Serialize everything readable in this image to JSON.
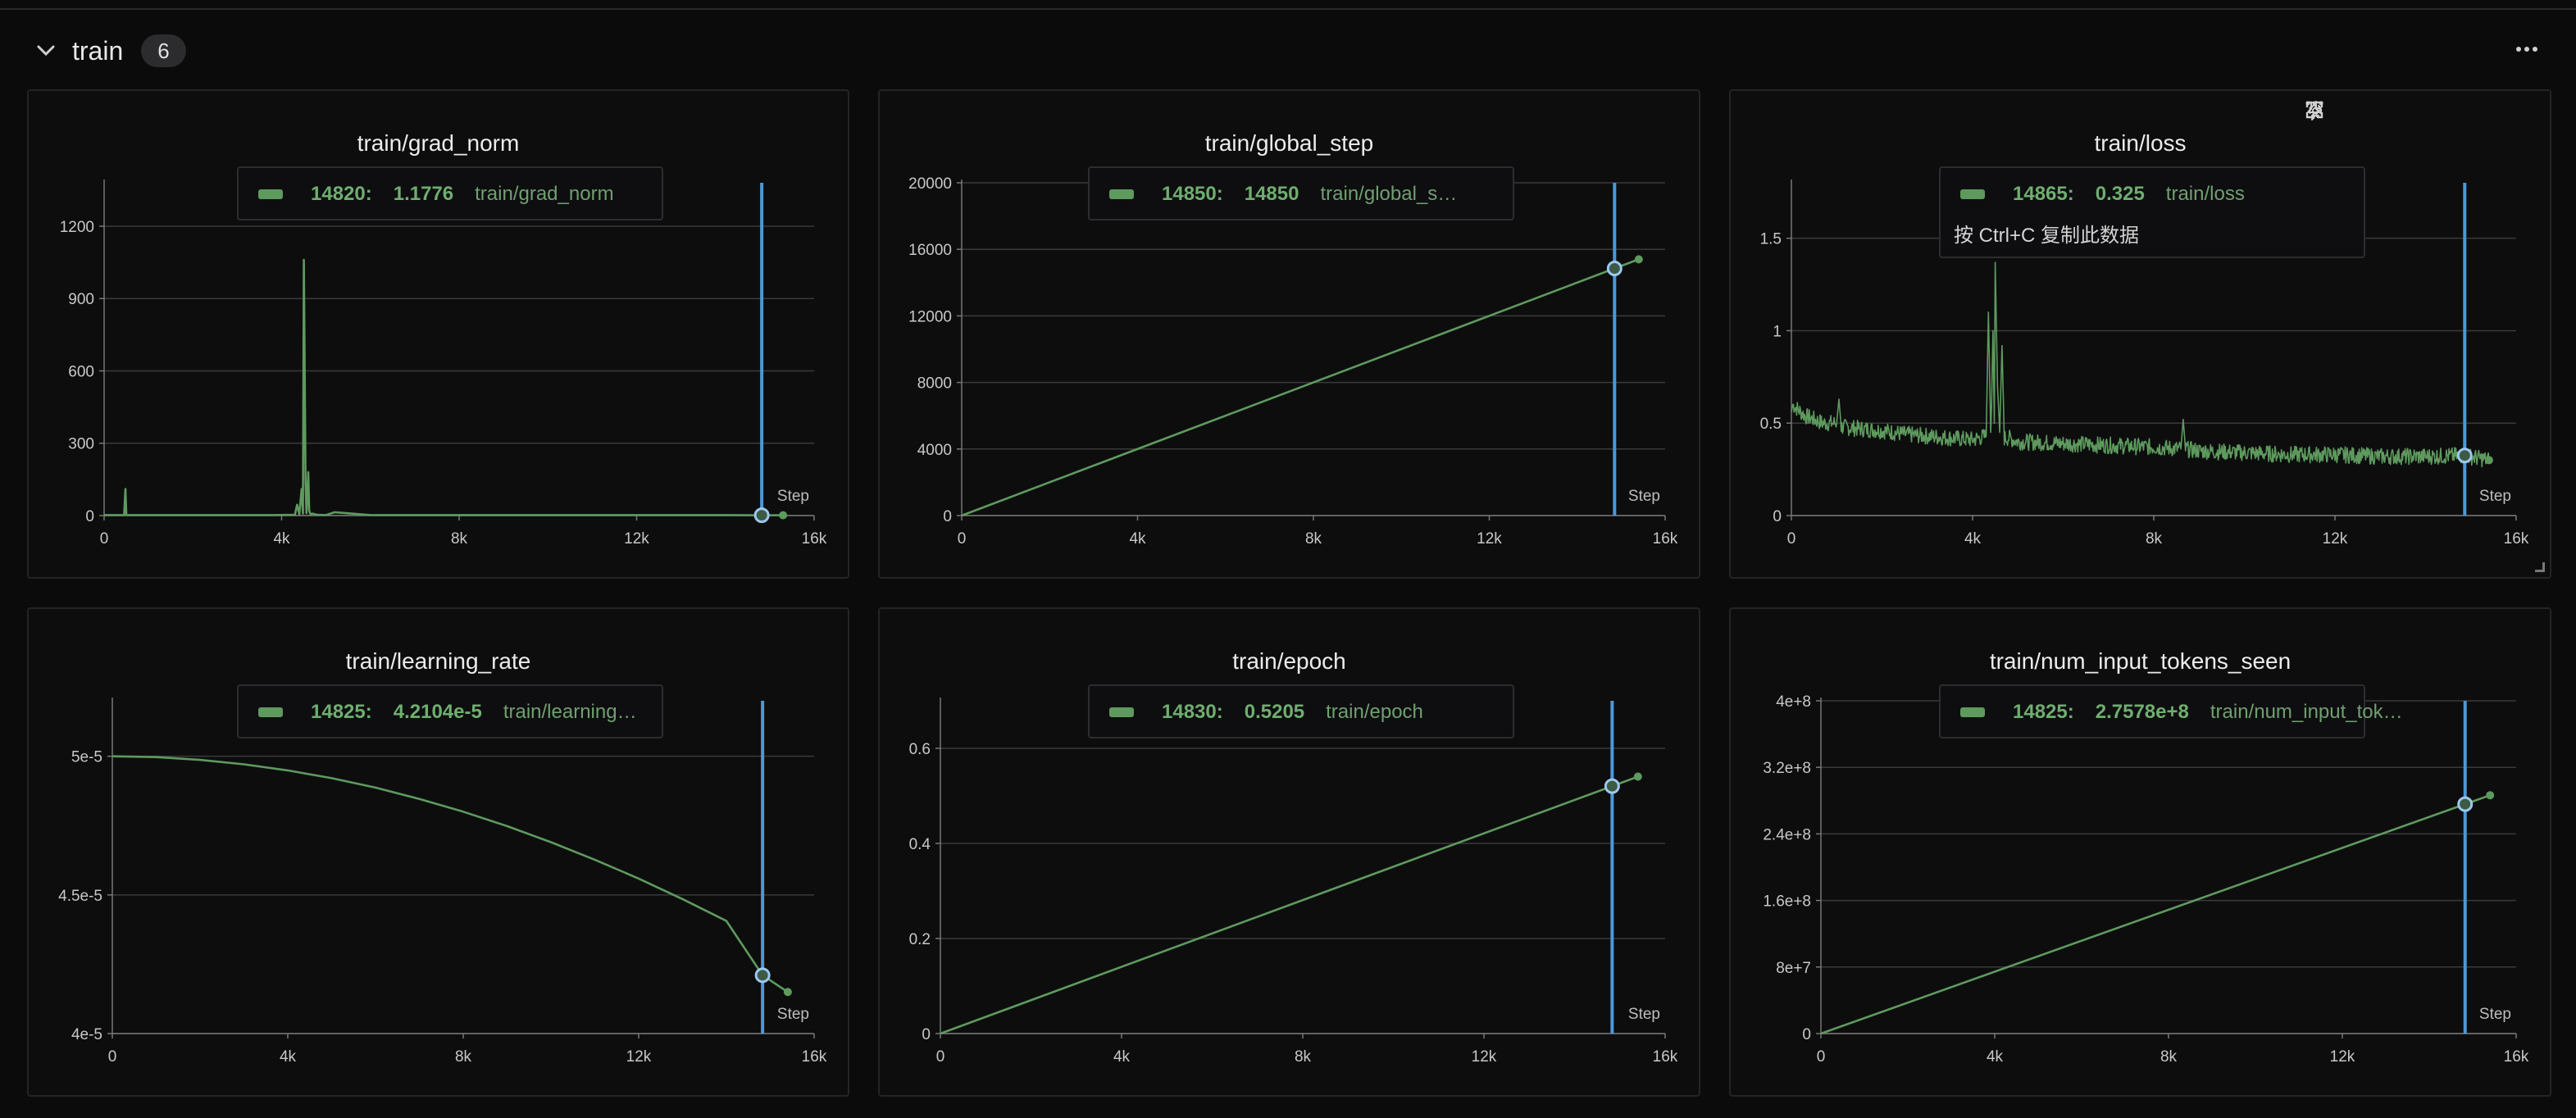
{
  "section": {
    "title": "train",
    "count": "6"
  },
  "x_axis_label": "Step",
  "colors": {
    "series": "#5e9a5e",
    "cursor": "#4c98d8",
    "grid": "#3a3a3c",
    "axis": "#777777"
  },
  "panels": [
    {
      "title": "train/grad_norm",
      "tooltip": {
        "step": "14820:",
        "value": "1.1776",
        "name": "train/grad_norm"
      }
    },
    {
      "title": "train/global_step",
      "tooltip": {
        "step": "14850:",
        "value": "14850",
        "name": "train/global_step"
      }
    },
    {
      "title": "train/loss",
      "tooltip": {
        "step": "14865:",
        "value": "0.325",
        "name": "train/loss",
        "hint": "按 Ctrl+C 复制此数据"
      }
    },
    {
      "title": "train/learning_rate",
      "tooltip": {
        "step": "14825:",
        "value": "4.2104e-5",
        "name": "train/learning_rate"
      }
    },
    {
      "title": "train/epoch",
      "tooltip": {
        "step": "14830:",
        "value": "0.5205",
        "name": "train/epoch"
      }
    },
    {
      "title": "train/num_input_tokens_seen",
      "tooltip": {
        "step": "14825:",
        "value": "2.7578e+8",
        "name": "train/num_input_tokens_seen"
      }
    }
  ],
  "chart_data": [
    {
      "type": "line",
      "title": "train/grad_norm",
      "xlabel": "Step",
      "xlim": [
        0,
        16000
      ],
      "ylim": [
        0,
        1380
      ],
      "xticks": [
        0,
        4000,
        8000,
        12000,
        16000
      ],
      "xtick_labels": [
        "0",
        "4k",
        "8k",
        "12k",
        "16k"
      ],
      "yticks": [
        0,
        300,
        600,
        900,
        1200
      ],
      "ytick_labels": [
        "0",
        "300",
        "600",
        "900",
        "1200"
      ],
      "x": [
        0,
        450,
        480,
        500,
        530,
        600,
        2000,
        3800,
        4300,
        4350,
        4400,
        4450,
        4480,
        4500,
        4540,
        4560,
        4600,
        4620,
        4650,
        4700,
        4800,
        5000,
        5200,
        6000,
        8000,
        10000,
        12000,
        14000,
        14820,
        15300
      ],
      "y": [
        2,
        2,
        110,
        3,
        2,
        2,
        2,
        2,
        3,
        45,
        5,
        110,
        8,
        1060,
        140,
        10,
        180,
        20,
        5,
        8,
        3,
        2,
        14,
        2,
        2,
        2,
        2,
        2,
        1.1776,
        1.2
      ],
      "cursor": {
        "x": 14820,
        "y": 1.1776
      }
    },
    {
      "type": "line",
      "title": "train/global_step",
      "xlabel": "Step",
      "xlim": [
        0,
        16000
      ],
      "ylim": [
        0,
        20000
      ],
      "xticks": [
        0,
        4000,
        8000,
        12000,
        16000
      ],
      "xtick_labels": [
        "0",
        "4k",
        "8k",
        "12k",
        "16k"
      ],
      "yticks": [
        0,
        4000,
        8000,
        12000,
        16000,
        20000
      ],
      "ytick_labels": [
        "0",
        "4000",
        "8000",
        "12000",
        "16000",
        "20000"
      ],
      "x": [
        0,
        14850,
        15400
      ],
      "y": [
        0,
        14850,
        15400
      ],
      "cursor": {
        "x": 14850,
        "y": 14850
      }
    },
    {
      "type": "line",
      "title": "train/loss",
      "xlabel": "Step",
      "xlim": [
        0,
        16000
      ],
      "ylim": [
        0,
        1.8
      ],
      "xticks": [
        0,
        4000,
        8000,
        12000,
        16000
      ],
      "xtick_labels": [
        "0",
        "4k",
        "8k",
        "12k",
        "16k"
      ],
      "yticks": [
        0,
        0.5,
        1,
        1.5
      ],
      "ytick_labels": [
        "0",
        "0.5",
        "1",
        "1.5"
      ],
      "x": [
        0,
        30,
        300,
        700,
        1000,
        1050,
        1100,
        1500,
        2000,
        2500,
        3000,
        3500,
        4000,
        4300,
        4350,
        4400,
        4420,
        4450,
        4480,
        4500,
        4550,
        4600,
        4650,
        4700,
        4800,
        5000,
        6000,
        7000,
        8000,
        8600,
        8650,
        8700,
        9000,
        10000,
        11000,
        12000,
        13000,
        14000,
        14865,
        15400
      ],
      "y": [
        0.56,
        0.6,
        0.54,
        0.5,
        0.5,
        0.63,
        0.48,
        0.47,
        0.46,
        0.44,
        0.43,
        0.42,
        0.41,
        0.43,
        1.1,
        0.45,
        0.6,
        1.0,
        0.5,
        1.37,
        0.7,
        0.45,
        0.92,
        0.42,
        0.42,
        0.4,
        0.39,
        0.38,
        0.37,
        0.36,
        0.52,
        0.36,
        0.35,
        0.34,
        0.33,
        0.33,
        0.32,
        0.32,
        0.325,
        0.3
      ],
      "cursor": {
        "x": 14865,
        "y": 0.325
      }
    },
    {
      "type": "line",
      "title": "train/learning_rate",
      "xlabel": "Step",
      "xlim": [
        0,
        16000
      ],
      "ylim": [
        4e-05,
        5.2e-05
      ],
      "xticks": [
        0,
        4000,
        8000,
        12000,
        16000
      ],
      "xtick_labels": [
        "0",
        "4k",
        "8k",
        "12k",
        "16k"
      ],
      "yticks": [
        4e-05,
        4.5e-05,
        5e-05
      ],
      "ytick_labels": [
        "4e-5",
        "4.5e-5",
        "5e-5"
      ],
      "x": [
        0,
        1000,
        2000,
        3000,
        4000,
        5000,
        6000,
        7000,
        8000,
        9000,
        10000,
        11000,
        12000,
        13000,
        14000,
        14825,
        15400
      ],
      "y": [
        5e-05,
        4.997e-05,
        4.987e-05,
        4.971e-05,
        4.949e-05,
        4.921e-05,
        4.887e-05,
        4.846e-05,
        4.8e-05,
        4.748e-05,
        4.69e-05,
        4.627e-05,
        4.559e-05,
        4.485e-05,
        4.406e-05,
        4.2104e-05,
        4.15e-05
      ],
      "cursor": {
        "x": 14825,
        "y": 4.2104e-05
      }
    },
    {
      "type": "line",
      "title": "train/epoch",
      "xlabel": "Step",
      "xlim": [
        0,
        16000
      ],
      "ylim": [
        0,
        0.7
      ],
      "xticks": [
        0,
        4000,
        8000,
        12000,
        16000
      ],
      "xtick_labels": [
        "0",
        "4k",
        "8k",
        "12k",
        "16k"
      ],
      "yticks": [
        0,
        0.2,
        0.4,
        0.6
      ],
      "ytick_labels": [
        "0",
        "0.2",
        "0.4",
        "0.6"
      ],
      "x": [
        0,
        14830,
        15400
      ],
      "y": [
        0,
        0.5205,
        0.5405
      ],
      "cursor": {
        "x": 14830,
        "y": 0.5205
      }
    },
    {
      "type": "line",
      "title": "train/num_input_tokens_seen",
      "xlabel": "Step",
      "xlim": [
        0,
        16000
      ],
      "ylim": [
        0,
        400000000
      ],
      "xticks": [
        0,
        4000,
        8000,
        12000,
        16000
      ],
      "xtick_labels": [
        "0",
        "4k",
        "8k",
        "12k",
        "16k"
      ],
      "yticks": [
        0,
        80000000,
        160000000,
        240000000,
        320000000,
        400000000
      ],
      "ytick_labels": [
        "0",
        "8e+7",
        "1.6e+8",
        "2.4e+8",
        "3.2e+8",
        "4e+8"
      ],
      "x": [
        0,
        14825,
        15400
      ],
      "y": [
        0,
        275780000,
        286500000
      ],
      "cursor": {
        "x": 14825,
        "y": 275780000
      }
    }
  ]
}
